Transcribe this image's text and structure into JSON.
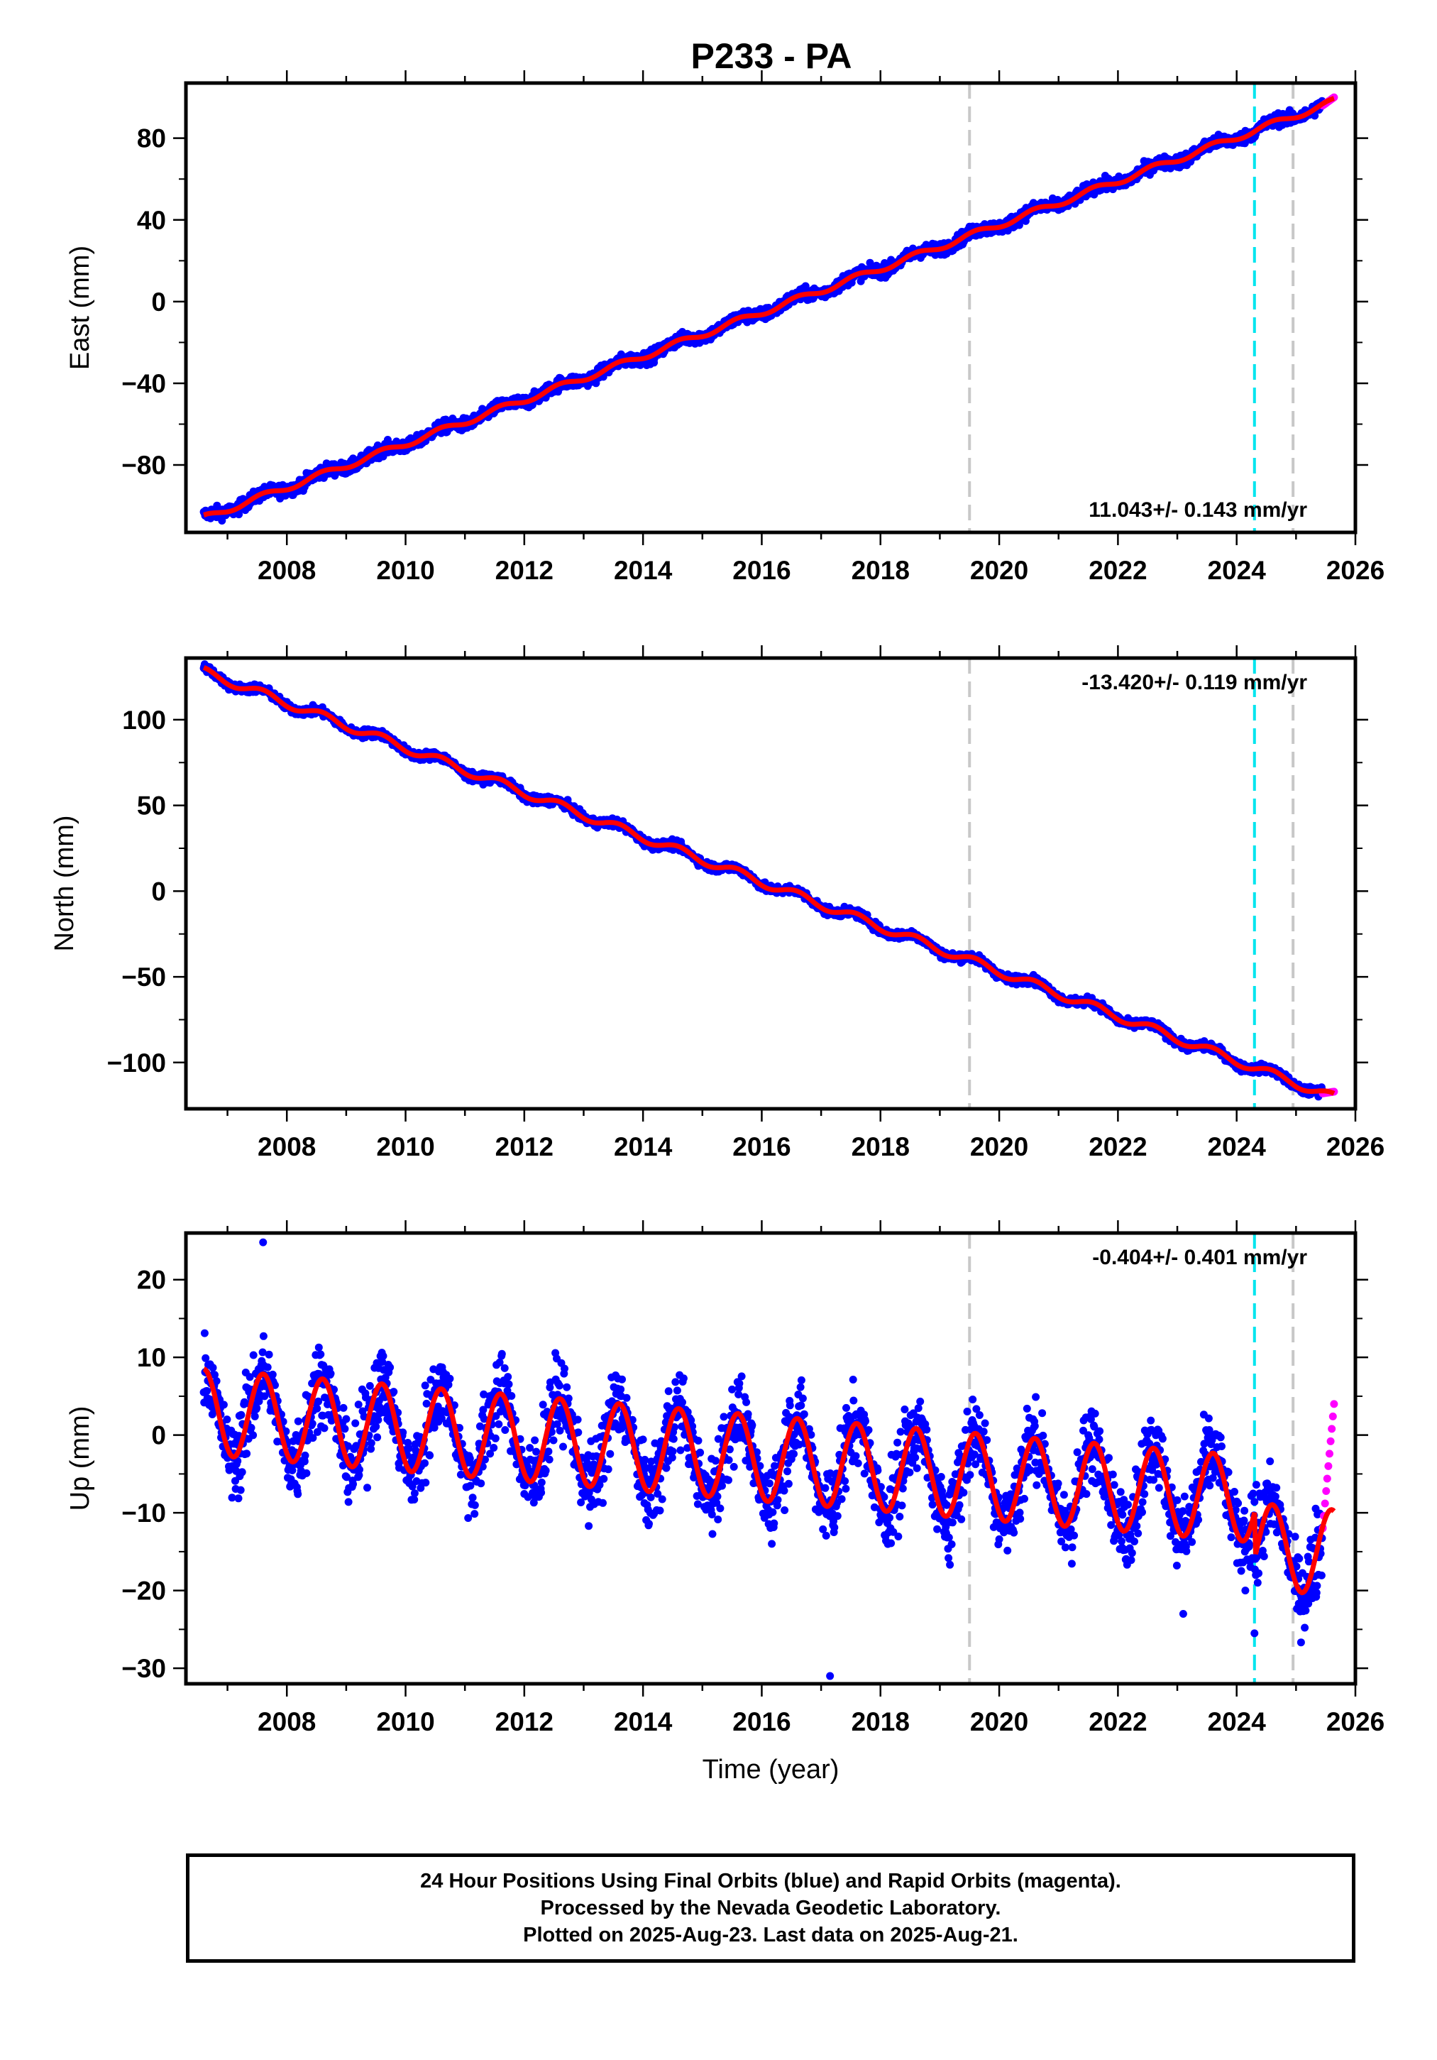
{
  "title": "P233 - PA",
  "colors": {
    "final_orbits": "#0000ff",
    "rapid_orbits": "#ff00ff",
    "model_fit": "#ff0000",
    "gray_marker": "#c8c8c8",
    "cyan_marker": "#00e5ee"
  },
  "markers": {
    "gray": [
      2019.5,
      2024.95
    ],
    "cyan": [
      2024.3
    ]
  },
  "chart_data": [
    {
      "type": "scatter",
      "name": "east",
      "ylabel": "East (mm)",
      "xlim": [
        2006.3,
        2026.0
      ],
      "ylim": [
        -113,
        107
      ],
      "xticks": [
        2008,
        2010,
        2012,
        2014,
        2016,
        2018,
        2020,
        2022,
        2024,
        2026
      ],
      "yticks": [
        -80,
        -40,
        0,
        40,
        80
      ],
      "rate_label": "11.043+/- 0.143 mm/yr",
      "rate_position": "bottom-right",
      "data_range": [
        2006.6,
        2025.6
      ],
      "final_orbit_series": {
        "start_year": 2006.6,
        "start_value": -106,
        "end_year": 2025.45,
        "end_value": 96
      },
      "rapid_orbit_series": {
        "years": [
          2025.45,
          2025.64
        ],
        "values": [
          96,
          100
        ]
      },
      "seasonal_amplitude": 1.5,
      "scatter_noise": 2.2
    },
    {
      "type": "scatter",
      "name": "north",
      "ylabel": "North (mm)",
      "xlim": [
        2006.3,
        2026.0
      ],
      "ylim": [
        -127,
        136
      ],
      "xticks": [
        2008,
        2010,
        2012,
        2014,
        2016,
        2018,
        2020,
        2022,
        2024,
        2026
      ],
      "yticks": [
        -100,
        -50,
        0,
        50,
        100
      ],
      "rate_label": "-13.420+/- 0.119 mm/yr",
      "rate_position": "top-right",
      "data_range": [
        2006.6,
        2025.6
      ],
      "final_orbit_series": {
        "start_year": 2006.6,
        "start_value": 128,
        "end_year": 2025.45,
        "end_value": -118
      },
      "rapid_orbit_series": {
        "years": [
          2025.45,
          2025.64
        ],
        "values": [
          -118,
          -117
        ]
      },
      "seasonal_amplitude": 2.5,
      "scatter_noise": 1.8
    },
    {
      "type": "scatter",
      "name": "up",
      "ylabel": "Up (mm)",
      "xlabel": "Time (year)",
      "xlim": [
        2006.3,
        2026.0
      ],
      "ylim": [
        -32,
        26
      ],
      "xticks": [
        2008,
        2010,
        2012,
        2014,
        2016,
        2018,
        2020,
        2022,
        2024,
        2026
      ],
      "yticks": [
        -30,
        -20,
        -10,
        0,
        10,
        20
      ],
      "rate_label": "-0.404+/- 0.401 mm/yr",
      "rate_position": "top-right",
      "data_range": [
        2006.6,
        2025.6
      ],
      "final_orbit_series": {
        "start_year": 2006.6,
        "start_value": 3,
        "end_year": 2025.45,
        "end_value": -9
      },
      "rapid_orbit_series": {
        "years": [
          2025.45,
          2025.64
        ],
        "values": [
          -12,
          4
        ]
      },
      "seasonal_amplitude": 5.5,
      "scatter_noise": 3.5,
      "outliers": [
        {
          "x": 2007.6,
          "y": 24.8
        },
        {
          "x": 2017.15,
          "y": -31
        },
        {
          "x": 2023.1,
          "y": -23
        },
        {
          "x": 2024.3,
          "y": -25.5
        }
      ]
    }
  ],
  "footer": {
    "line1": "24 Hour Positions Using Final Orbits (blue) and Rapid Orbits (magenta).",
    "line2": "Processed by the Nevada Geodetic Laboratory.",
    "line3": "Plotted on 2025-Aug-23. Last data on 2025-Aug-21."
  }
}
